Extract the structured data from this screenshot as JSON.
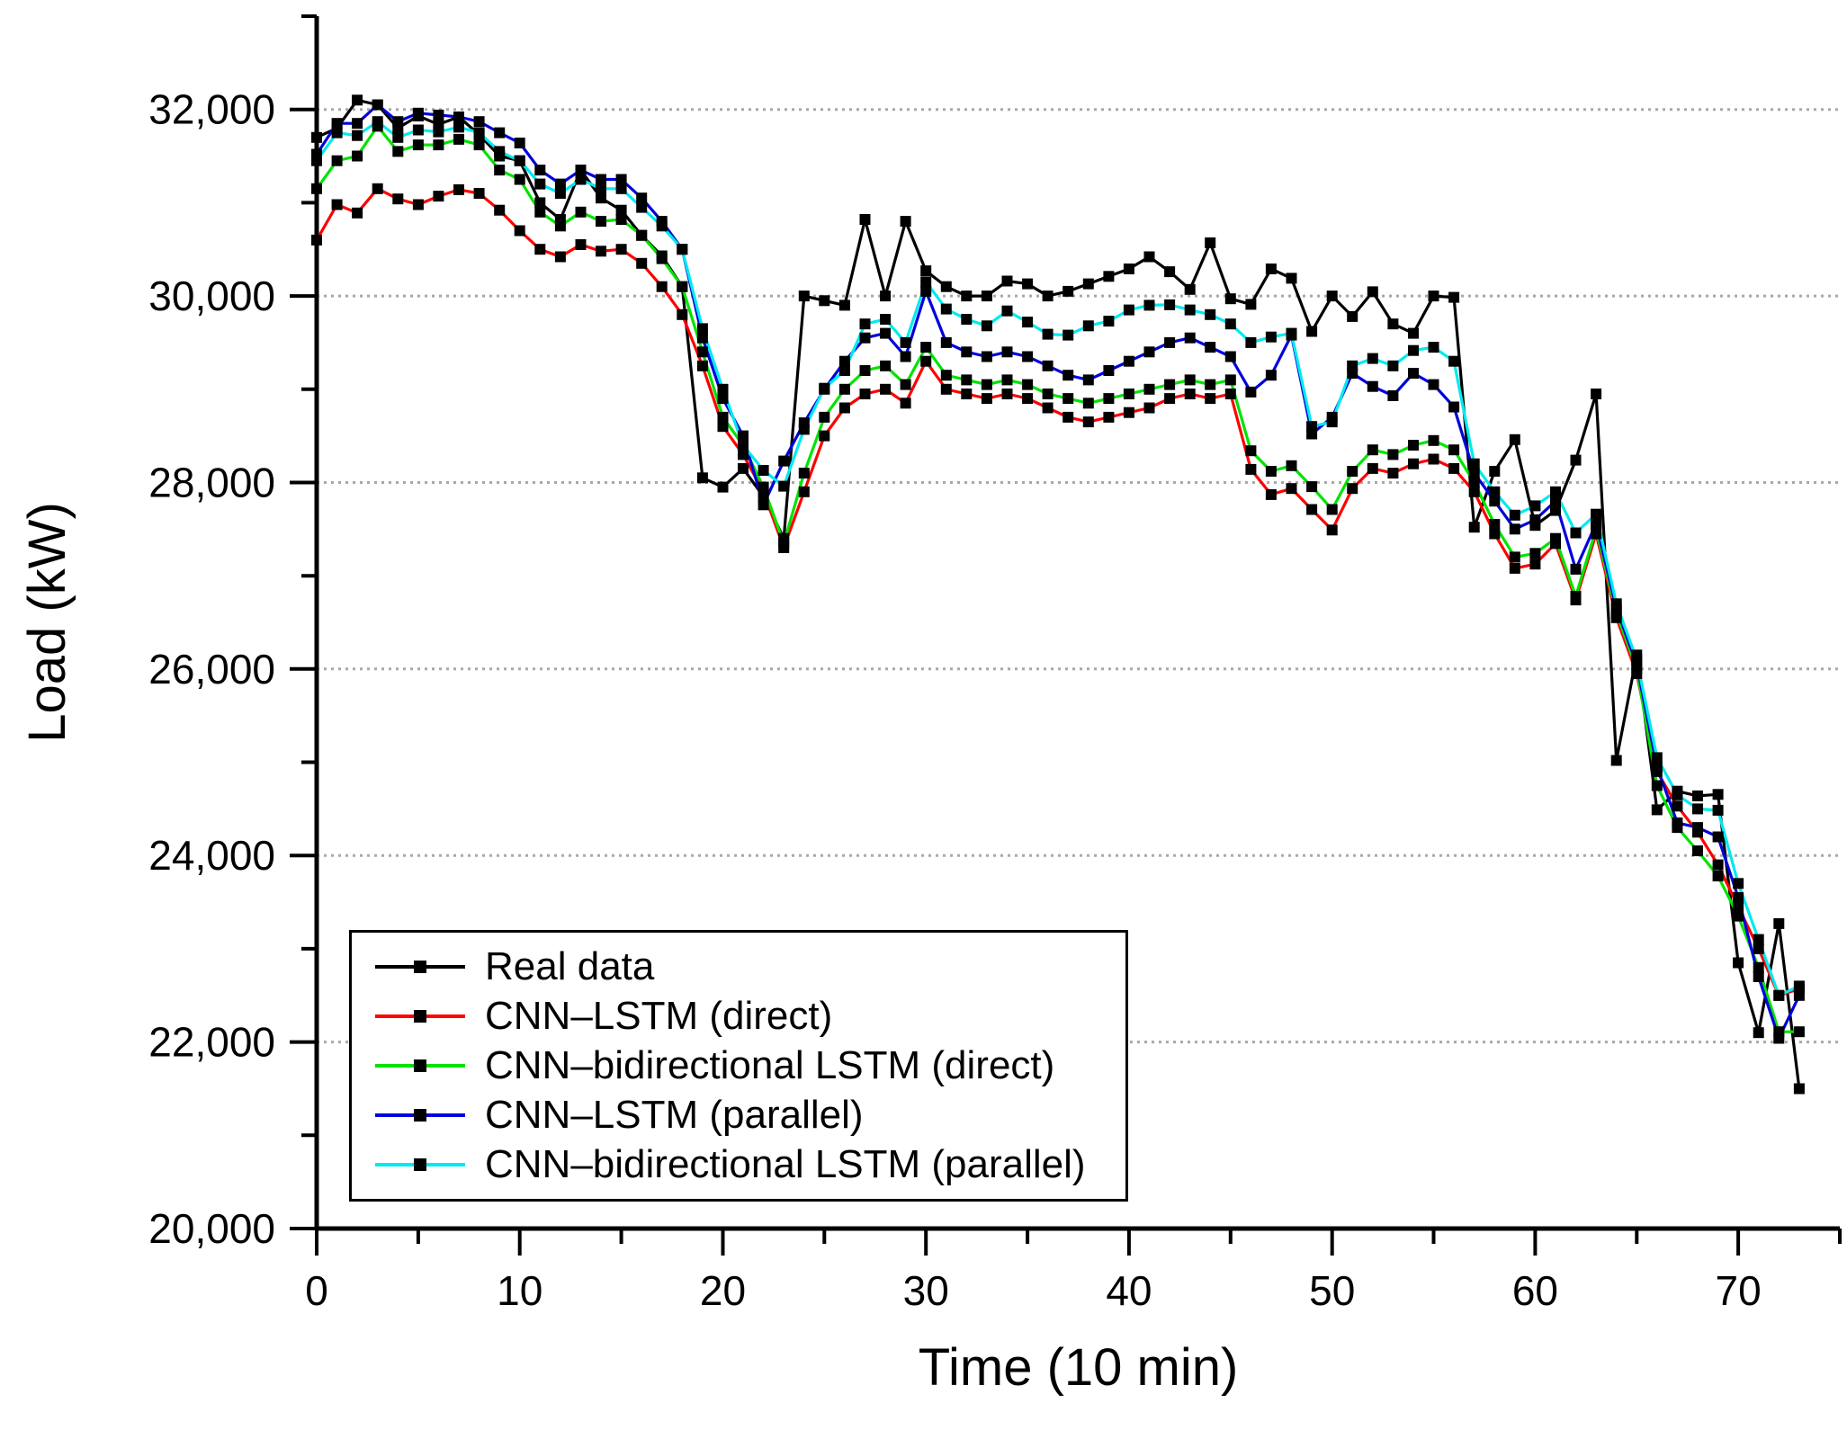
{
  "chart_data": {
    "type": "line",
    "title": "",
    "xlabel": "Time (10 min)",
    "ylabel": "Load (kW)",
    "xlim": [
      0,
      75
    ],
    "ylim": [
      20000,
      33000
    ],
    "x_ticks": [
      0,
      10,
      20,
      30,
      40,
      50,
      60,
      70
    ],
    "x_minor_step": 5,
    "y_ticks": [
      20000,
      22000,
      24000,
      26000,
      28000,
      30000,
      32000
    ],
    "y_tick_labels": [
      "20,000",
      "22,000",
      "24,000",
      "26,000",
      "28,000",
      "30,000",
      "32,000"
    ],
    "y_minor_ticks": [
      21000,
      23000,
      25000,
      27000,
      29000,
      31000,
      33000
    ],
    "grid": "horizontal-dashed",
    "grid_color": "#a8a8a8",
    "legend_position": "lower-left",
    "marker": "black-square",
    "x": [
      0,
      1,
      2,
      3,
      4,
      5,
      6,
      7,
      8,
      9,
      10,
      11,
      12,
      13,
      14,
      15,
      16,
      17,
      18,
      19,
      20,
      21,
      22,
      23,
      24,
      25,
      26,
      27,
      28,
      29,
      30,
      31,
      32,
      33,
      34,
      35,
      36,
      37,
      38,
      39,
      40,
      41,
      42,
      43,
      44,
      45,
      46,
      47,
      48,
      49,
      50,
      51,
      52,
      53,
      54,
      55,
      56,
      57,
      58,
      59,
      60,
      61,
      62,
      63,
      64,
      65,
      66,
      67,
      68,
      69,
      70,
      71,
      72,
      73
    ],
    "series": [
      {
        "name": "Real data",
        "color": "#000000",
        "values": [
          31700,
          31800,
          32100,
          32050,
          31800,
          31930,
          31840,
          31920,
          31730,
          31500,
          31450,
          31000,
          30820,
          31350,
          31050,
          30920,
          30650,
          30430,
          30100,
          28050,
          27950,
          28150,
          27850,
          27400,
          30000,
          29950,
          29900,
          30820,
          30000,
          30800,
          30270,
          30100,
          30000,
          30000,
          30160,
          30130,
          30000,
          30050,
          30130,
          30210,
          30290,
          30420,
          30260,
          30070,
          30570,
          29970,
          29910,
          30290,
          30190,
          29620,
          30000,
          29780,
          30045,
          29700,
          29600,
          30000,
          29985,
          27520,
          28120,
          28460,
          27540,
          27700,
          28240,
          28950,
          25020,
          26150,
          24490,
          24690,
          24640,
          24655,
          22850,
          22100,
          23270,
          21500
        ]
      },
      {
        "name": "CNN–LSTM (direct)",
        "color": "#ff0000",
        "values": [
          30600,
          30980,
          30890,
          31150,
          31040,
          30980,
          31070,
          31140,
          31100,
          30920,
          30700,
          30500,
          30420,
          30550,
          30480,
          30500,
          30350,
          30100,
          29800,
          29250,
          28600,
          28300,
          27900,
          27300,
          27900,
          28500,
          28800,
          28950,
          29000,
          28850,
          29300,
          29000,
          28950,
          28900,
          28950,
          28900,
          28800,
          28700,
          28650,
          28700,
          28750,
          28800,
          28900,
          28950,
          28900,
          28950,
          28140,
          27870,
          27935,
          27710,
          27490,
          27935,
          28150,
          28100,
          28200,
          28250,
          28150,
          27900,
          27450,
          27080,
          27125,
          27345,
          26740,
          27450,
          26550,
          25950,
          24900,
          24530,
          24250,
          23900,
          23450,
          23000,
          22500,
          22570
        ]
      },
      {
        "name": "CNN–bidirectional LSTM (direct)",
        "color": "#00e400",
        "values": [
          31150,
          31450,
          31500,
          31820,
          31550,
          31620,
          31620,
          31680,
          31620,
          31350,
          31250,
          30900,
          30750,
          30900,
          30800,
          30820,
          30650,
          30400,
          30100,
          29400,
          28700,
          28400,
          27950,
          27350,
          28100,
          28700,
          29000,
          29200,
          29250,
          29050,
          29450,
          29150,
          29100,
          29050,
          29100,
          29050,
          28950,
          28900,
          28850,
          28900,
          28950,
          29000,
          29050,
          29100,
          29050,
          29100,
          28340,
          28120,
          28180,
          27955,
          27710,
          28120,
          28350,
          28300,
          28400,
          28450,
          28350,
          28000,
          27550,
          27200,
          27240,
          27400,
          26780,
          27500,
          26600,
          26000,
          24750,
          24300,
          24050,
          23780,
          23350,
          22800,
          22110,
          22110
        ]
      },
      {
        "name": "CNN–LSTM (parallel)",
        "color": "#0000dc",
        "values": [
          31520,
          31850,
          31850,
          32050,
          31870,
          31960,
          31940,
          31920,
          31870,
          31750,
          31640,
          31350,
          31200,
          31350,
          31250,
          31250,
          31050,
          30800,
          30500,
          29550,
          28900,
          28500,
          27760,
          28230,
          28640,
          29000,
          29300,
          29550,
          29600,
          29350,
          30050,
          29500,
          29400,
          29350,
          29400,
          29350,
          29250,
          29150,
          29100,
          29200,
          29300,
          29400,
          29500,
          29550,
          29450,
          29350,
          28970,
          29150,
          29580,
          28520,
          28700,
          29170,
          29030,
          28930,
          29170,
          29050,
          28810,
          28100,
          27800,
          27500,
          27600,
          27800,
          27070,
          27560,
          26650,
          26050,
          24950,
          24350,
          24300,
          24200,
          23550,
          22700,
          22040,
          22500
        ]
      },
      {
        "name": "CNN–bidirectional LSTM (parallel)",
        "color": "#00eaf0",
        "values": [
          31450,
          31750,
          31720,
          31870,
          31700,
          31780,
          31760,
          31810,
          31750,
          31550,
          31450,
          31200,
          31100,
          31250,
          31150,
          31150,
          30950,
          30750,
          30500,
          29650,
          29000,
          28400,
          28130,
          27960,
          28570,
          29010,
          29200,
          29700,
          29750,
          29500,
          30150,
          29860,
          29750,
          29680,
          29840,
          29720,
          29590,
          29580,
          29680,
          29730,
          29850,
          29900,
          29905,
          29850,
          29800,
          29700,
          29500,
          29560,
          29600,
          28600,
          28650,
          29250,
          29330,
          29250,
          29415,
          29450,
          29300,
          28200,
          27900,
          27650,
          27750,
          27900,
          27460,
          27660,
          26700,
          26100,
          25050,
          24650,
          24500,
          24485,
          23700,
          23100,
          22500,
          22600
        ]
      }
    ]
  },
  "legend": {
    "items": [
      "Real data",
      "CNN–LSTM (direct)",
      "CNN–bidirectional LSTM (direct)",
      "CNN–LSTM (parallel)",
      "CNN–bidirectional LSTM (parallel)"
    ]
  }
}
